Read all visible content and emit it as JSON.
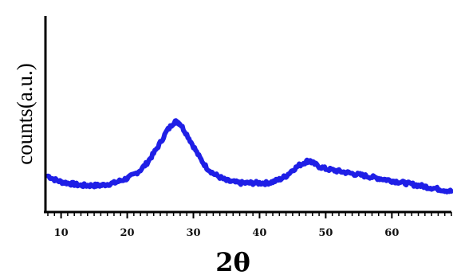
{
  "chart_data": {
    "type": "line",
    "title": "",
    "xlabel": "2θ",
    "ylabel": "counts(a.u.)",
    "xlim": [
      8,
      69
    ],
    "ylim": [
      0,
      1
    ],
    "xticks": [
      10,
      20,
      30,
      40,
      50,
      60
    ],
    "grid": false,
    "legend": "none",
    "colors": {
      "series": "#1f1fe6",
      "axis": "#000000"
    },
    "series": [
      {
        "x": [
          8.0,
          9.0,
          10.0,
          11.0,
          12.0,
          13.0,
          14.0,
          15.0,
          16.0,
          17.0,
          18.0,
          19.0,
          20.0,
          21.0,
          22.0,
          23.0,
          24.0,
          25.0,
          26.0,
          27.0,
          27.5,
          28.0,
          29.0,
          30.0,
          31.0,
          32.0,
          33.0,
          34.0,
          35.0,
          36.0,
          37.0,
          38.0,
          39.0,
          40.0,
          41.0,
          42.0,
          43.0,
          44.0,
          45.0,
          46.0,
          47.0,
          47.5,
          48.0,
          49.0,
          50.0,
          51.0,
          52.0,
          53.0,
          54.0,
          55.0,
          56.0,
          57.0,
          58.0,
          59.0,
          60.0,
          61.0,
          62.0,
          63.0,
          64.0,
          65.0,
          66.0,
          67.0,
          68.0,
          69.0
        ],
        "values": [
          0.17,
          0.14,
          0.12,
          0.11,
          0.1,
          0.09,
          0.09,
          0.09,
          0.09,
          0.1,
          0.11,
          0.13,
          0.15,
          0.18,
          0.22,
          0.28,
          0.36,
          0.45,
          0.55,
          0.62,
          0.63,
          0.61,
          0.52,
          0.42,
          0.32,
          0.24,
          0.19,
          0.16,
          0.13,
          0.12,
          0.11,
          0.11,
          0.11,
          0.11,
          0.11,
          0.12,
          0.14,
          0.17,
          0.22,
          0.26,
          0.29,
          0.3,
          0.28,
          0.25,
          0.23,
          0.22,
          0.21,
          0.2,
          0.19,
          0.18,
          0.17,
          0.16,
          0.15,
          0.14,
          0.13,
          0.12,
          0.11,
          0.1,
          0.09,
          0.08,
          0.07,
          0.06,
          0.05,
          0.04
        ]
      }
    ]
  }
}
